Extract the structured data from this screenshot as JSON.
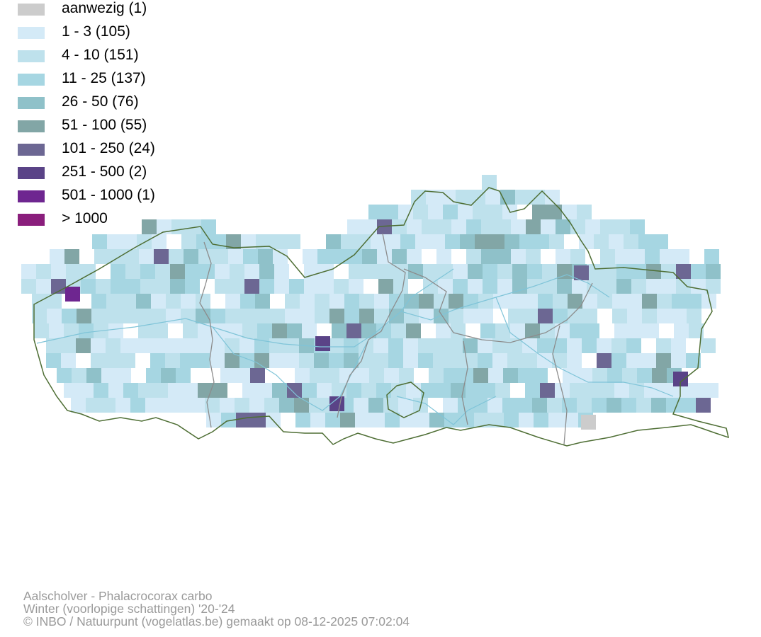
{
  "legend": {
    "items": [
      {
        "label": "aanwezig (1)",
        "color": "#cccccc"
      },
      {
        "label": "1 - 3 (105)",
        "color": "#d4eaf7"
      },
      {
        "label": "4 - 10 (151)",
        "color": "#bee1ec"
      },
      {
        "label": "11 - 25 (137)",
        "color": "#a6d6e2"
      },
      {
        "label": "26 - 50 (76)",
        "color": "#8fc1c9"
      },
      {
        "label": "51 - 100 (55)",
        "color": "#82a6a6"
      },
      {
        "label": "101 - 250 (24)",
        "color": "#6c6793"
      },
      {
        "label": "251 - 500 (2)",
        "color": "#5a4387"
      },
      {
        "label": "501 - 1000 (1)",
        "color": "#6e2690"
      },
      {
        "label": "> 1000",
        "color": "#8a1e7c"
      }
    ]
  },
  "map": {
    "border_color": "#4e6e34",
    "province_border_color": "#8c8c8c",
    "river_color": "#7fc4d8"
  },
  "footer": {
    "line1": "Aalscholver - Phalacrocorax carbo",
    "line2": "Winter (voorlopige schattingen) '20-'24",
    "line3": "© INBO / Natuurpunt (vogelatlas.be) gemaakt op 08-12-2025 07:02:04"
  }
}
